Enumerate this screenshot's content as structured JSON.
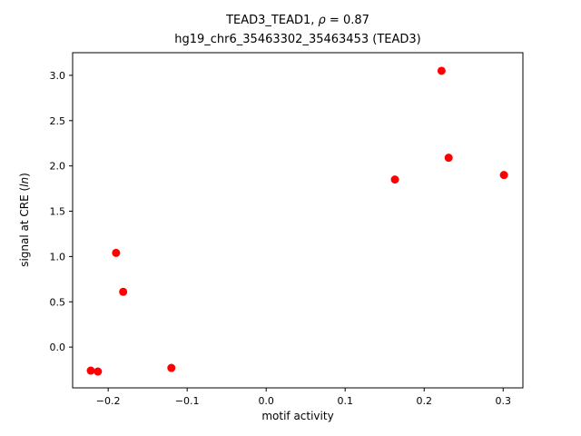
{
  "title": {
    "line1_pre": "TEAD3_TEAD1, ",
    "line1_rho": "ρ",
    "line1_post": " = 0.87",
    "line2": "hg19_chr6_35463302_35463453 (TEAD3)"
  },
  "axes": {
    "xlabel": "motif activity",
    "ylabel_prefix": "signal at CRE (",
    "ylabel_italic": "ln",
    "ylabel_suffix": ")"
  },
  "chart_data": {
    "type": "scatter",
    "title": "TEAD3_TEAD1, ρ = 0.87\nhg19_chr6_35463302_35463453 (TEAD3)",
    "xlabel": "motif activity",
    "ylabel": "signal at CRE (ln)",
    "marker_color": "#ff0000",
    "marker_size_px": 4.5,
    "grid": false,
    "legend": "none",
    "xlim": [
      -0.245,
      0.325
    ],
    "ylim": [
      -0.45,
      3.25
    ],
    "xticks": [
      -0.2,
      -0.1,
      0.0,
      0.1,
      0.2,
      0.3
    ],
    "yticks": [
      0.0,
      0.5,
      1.0,
      1.5,
      2.0,
      2.5,
      3.0
    ],
    "points": [
      {
        "x": -0.222,
        "y": -0.26
      },
      {
        "x": -0.213,
        "y": -0.27
      },
      {
        "x": -0.19,
        "y": 1.04
      },
      {
        "x": -0.181,
        "y": 0.61
      },
      {
        "x": -0.12,
        "y": -0.23
      },
      {
        "x": 0.163,
        "y": 1.85
      },
      {
        "x": 0.222,
        "y": 3.05
      },
      {
        "x": 0.231,
        "y": 2.09
      },
      {
        "x": 0.301,
        "y": 1.9
      }
    ]
  }
}
